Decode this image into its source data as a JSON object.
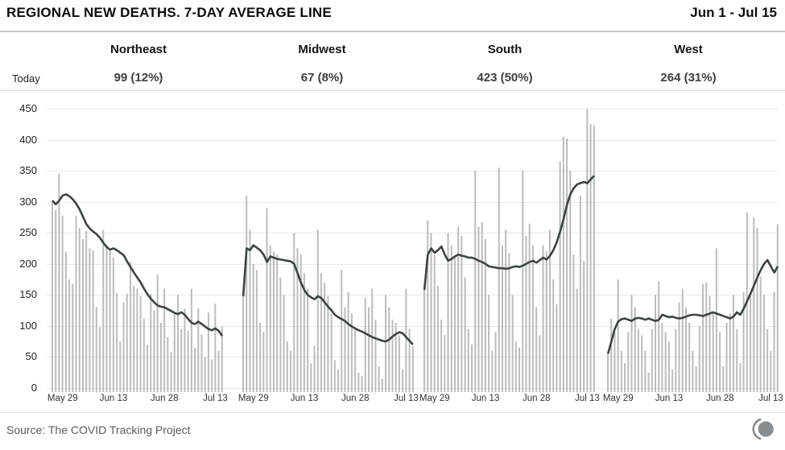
{
  "header": {
    "title": "REGIONAL NEW DEATHS. 7-DAY AVERAGE LINE",
    "date_range": "Jun 1 - Jul 15"
  },
  "summary": {
    "row_label": "Today",
    "regions": [
      {
        "name": "Northeast",
        "today_display": "99 (12%)",
        "today_value": 99,
        "today_share": "12%"
      },
      {
        "name": "Midwest",
        "today_display": "67 (8%)",
        "today_value": 67,
        "today_share": "8%"
      },
      {
        "name": "South",
        "today_display": "423 (50%)",
        "today_value": 423,
        "today_share": "50%"
      },
      {
        "name": "West",
        "today_display": "264 (31%)",
        "today_value": 264,
        "today_share": "31%"
      }
    ]
  },
  "footer": {
    "source": "Source: The COVID Tracking Project",
    "logo": "covid-tracking-project-logo"
  },
  "chart_data": {
    "type": "bar",
    "subtype": "small-multiples daily bars with 7-day average line overlay",
    "title": "REGIONAL NEW DEATHS. 7-DAY AVERAGE LINE",
    "xlabel": "",
    "ylabel": "",
    "ylim": [
      0,
      450
    ],
    "y_ticks": [
      0,
      50,
      100,
      150,
      200,
      250,
      300,
      350,
      400,
      450
    ],
    "grid": true,
    "legend": "none",
    "n_days": 51,
    "x_tick_labels": [
      "May 29",
      "Jun 13",
      "Jun 28",
      "Jul 13"
    ],
    "x_tick_indices": [
      3,
      18,
      33,
      48
    ],
    "bar_color": "#b9bdbf",
    "line_color": "#3c4442",
    "panels": [
      {
        "region": "Northeast",
        "bars": [
          300,
          287,
          345,
          278,
          220,
          175,
          168,
          277,
          258,
          240,
          253,
          225,
          222,
          130,
          98,
          255,
          230,
          222,
          210,
          153,
          75,
          138,
          152,
          203,
          165,
          160,
          148,
          112,
          70,
          152,
          125,
          183,
          105,
          160,
          82,
          58,
          120,
          150,
          95,
          128,
          92,
          160,
          65,
          128,
          86,
          50,
          122,
          46,
          136,
          60,
          99
        ],
        "avg7": [
          302,
          296,
          302,
          310,
          312,
          309,
          304,
          297,
          288,
          276,
          264,
          257,
          252,
          248,
          242,
          234,
          227,
          223,
          225,
          222,
          218,
          214,
          204,
          195,
          186,
          178,
          170,
          160,
          151,
          144,
          138,
          133,
          131,
          130,
          127,
          124,
          121,
          119,
          122,
          118,
          111,
          105,
          103,
          107,
          103,
          99,
          95,
          93,
          96,
          92,
          84
        ]
      },
      {
        "region": "Midwest",
        "bars": [
          150,
          310,
          255,
          200,
          190,
          105,
          90,
          290,
          230,
          220,
          215,
          178,
          150,
          75,
          60,
          250,
          225,
          215,
          185,
          160,
          40,
          68,
          255,
          185,
          170,
          148,
          120,
          45,
          30,
          190,
          130,
          155,
          120,
          95,
          25,
          20,
          145,
          130,
          160,
          110,
          35,
          15,
          150,
          130,
          110,
          105,
          85,
          30,
          160,
          95,
          67
        ],
        "avg7": [
          148,
          225,
          222,
          230,
          226,
          222,
          215,
          203,
          212,
          210,
          208,
          207,
          206,
          205,
          204,
          200,
          185,
          170,
          158,
          150,
          146,
          143,
          148,
          145,
          138,
          131,
          125,
          118,
          114,
          111,
          108,
          103,
          99,
          96,
          93,
          91,
          88,
          85,
          82,
          80,
          78,
          76,
          75,
          78,
          83,
          87,
          90,
          88,
          82,
          76,
          70
        ]
      },
      {
        "region": "South",
        "bars": [
          160,
          270,
          250,
          215,
          165,
          110,
          85,
          250,
          230,
          210,
          260,
          245,
          178,
          95,
          70,
          350,
          260,
          267,
          240,
          150,
          60,
          90,
          355,
          230,
          255,
          218,
          150,
          75,
          65,
          350,
          245,
          265,
          230,
          130,
          85,
          230,
          220,
          255,
          175,
          135,
          365,
          405,
          402,
          350,
          215,
          160,
          310,
          205,
          450,
          425,
          423
        ],
        "avg7": [
          158,
          215,
          225,
          218,
          222,
          228,
          215,
          205,
          208,
          212,
          215,
          213,
          212,
          210,
          210,
          208,
          205,
          203,
          200,
          196,
          195,
          194,
          193,
          193,
          192,
          193,
          195,
          196,
          195,
          197,
          200,
          203,
          205,
          202,
          206,
          210,
          207,
          213,
          222,
          235,
          252,
          272,
          295,
          312,
          322,
          328,
          330,
          332,
          330,
          336,
          342
        ]
      },
      {
        "region": "West",
        "bars": [
          55,
          112,
          90,
          175,
          60,
          40,
          90,
          150,
          130,
          95,
          85,
          60,
          25,
          95,
          150,
          172,
          105,
          90,
          75,
          30,
          95,
          138,
          160,
          130,
          105,
          60,
          35,
          100,
          168,
          170,
          148,
          120,
          225,
          90,
          35,
          105,
          120,
          150,
          95,
          40,
          155,
          283,
          150,
          275,
          258,
          180,
          150,
          95,
          60,
          155,
          264
        ],
        "avg7": [
          55,
          75,
          95,
          107,
          111,
          112,
          110,
          108,
          112,
          113,
          112,
          110,
          112,
          110,
          108,
          110,
          118,
          116,
          114,
          115,
          113,
          112,
          113,
          115,
          117,
          118,
          118,
          117,
          116,
          118,
          120,
          122,
          120,
          118,
          116,
          114,
          112,
          115,
          122,
          118,
          128,
          140,
          152,
          165,
          178,
          190,
          200,
          206,
          196,
          186,
          196
        ]
      }
    ]
  }
}
